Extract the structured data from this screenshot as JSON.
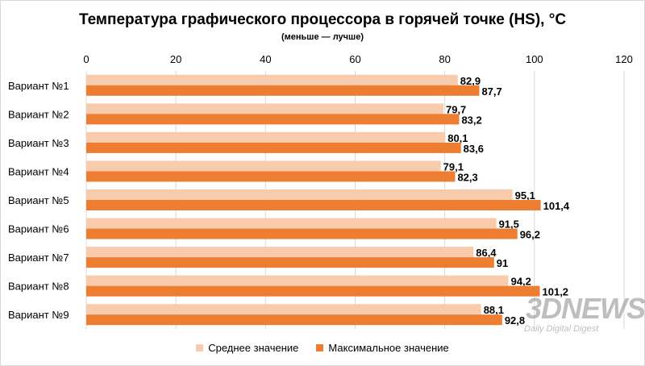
{
  "colors": {
    "avg": "#f8cbad",
    "max": "#ed7d31",
    "grid": "#d9d9d9",
    "text": "#000000"
  },
  "chart_data": {
    "type": "bar",
    "orientation": "horizontal",
    "title": "Температура графического процессора в горячей точке (HS), °C",
    "subtitle": "(меньше — лучше)",
    "xlim": [
      0,
      120
    ],
    "xticks": [
      "0",
      "20",
      "40",
      "60",
      "80",
      "100",
      "120"
    ],
    "categories": [
      "Вариант №1",
      "Вариант №2",
      "Вариант №3",
      "Вариант №4",
      "Вариант №5",
      "Вариант №6",
      "Вариант №7",
      "Вариант №8",
      "Вариант №9"
    ],
    "series": [
      {
        "name": "Среднее значение",
        "values": [
          82.9,
          79.7,
          80.1,
          79.1,
          95.1,
          91.5,
          86.4,
          94.2,
          88.1
        ],
        "labels": [
          "82,9",
          "79,7",
          "80,1",
          "79,1",
          "95,1",
          "91,5",
          "86,4",
          "94,2",
          "88,1"
        ]
      },
      {
        "name": "Максимальное значение",
        "values": [
          87.7,
          83.2,
          83.6,
          82.3,
          101.4,
          96.2,
          91,
          101.2,
          92.8
        ],
        "labels": [
          "87,7",
          "83,2",
          "83,6",
          "82,3",
          "101,4",
          "96,2",
          "91",
          "101,2",
          "92,8"
        ]
      }
    ],
    "legend": "bottom"
  },
  "watermark": {
    "logo": "3DNEWS",
    "tagline": "Daily Digital Digest"
  }
}
